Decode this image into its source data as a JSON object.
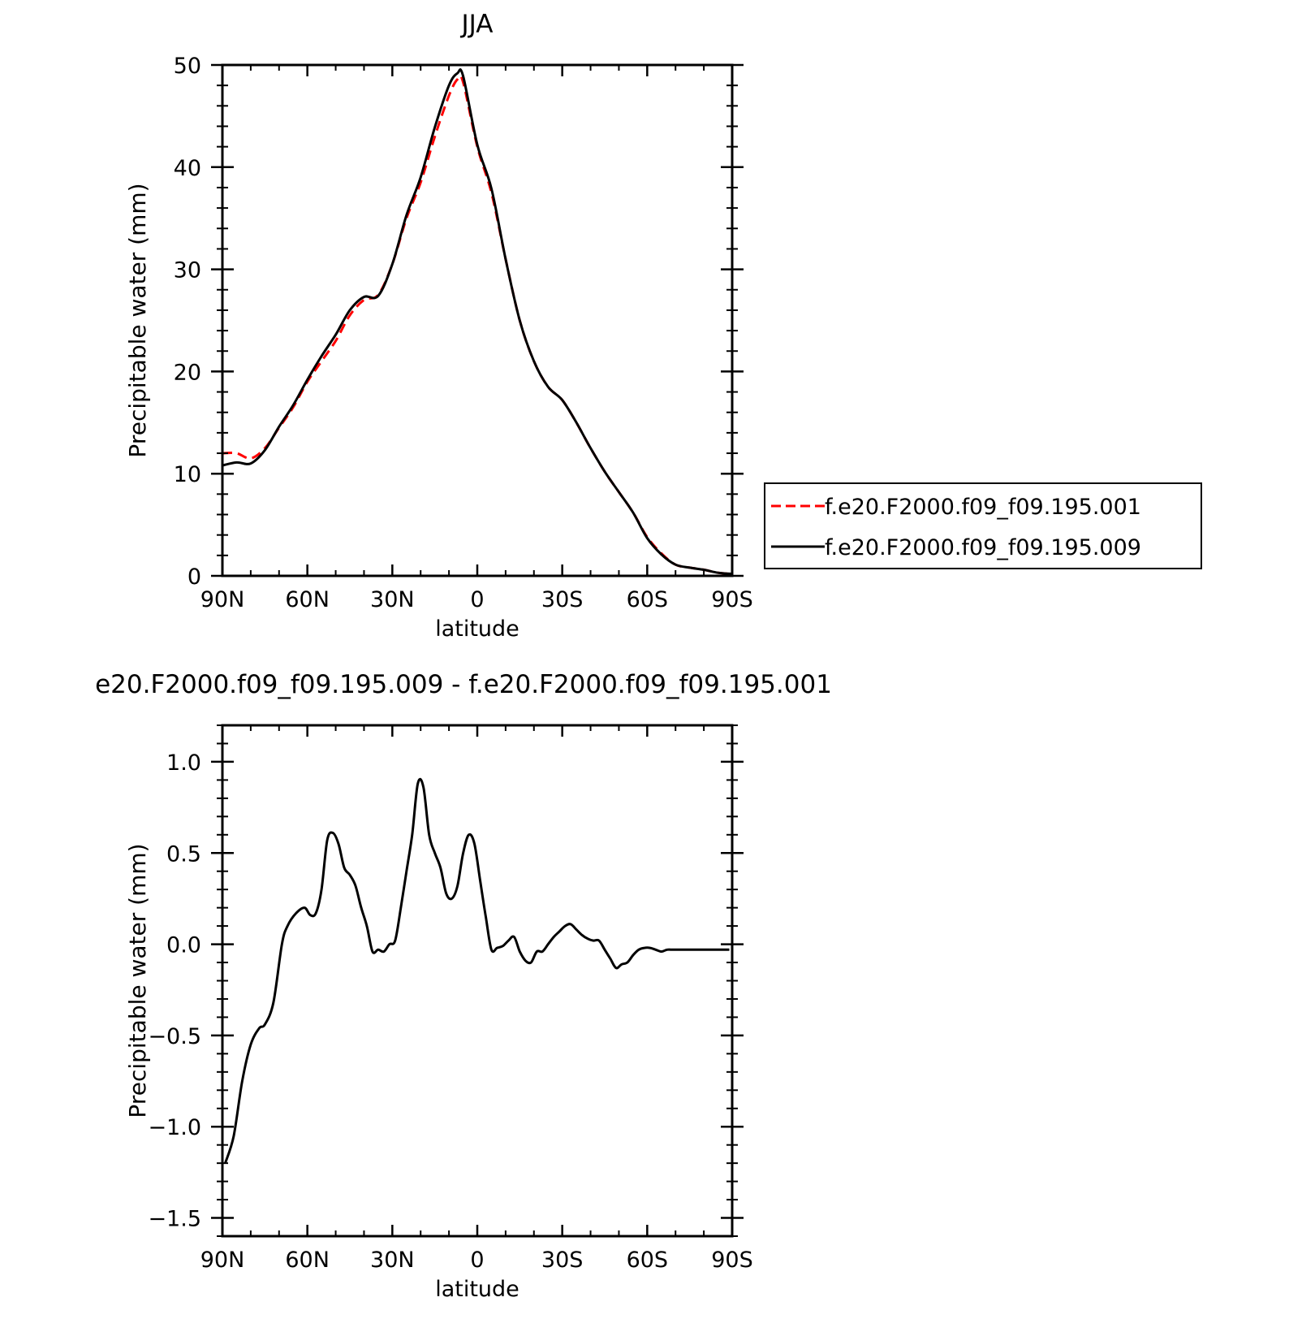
{
  "chart_data": [
    {
      "type": "line",
      "title": "JJA",
      "xlabel": "latitude",
      "ylabel": "Precipitable water (mm)",
      "xlim": [
        90,
        -90
      ],
      "ylim": [
        0,
        50
      ],
      "x_ticks": [
        90,
        60,
        30,
        0,
        -30,
        -60,
        -90
      ],
      "x_tick_labels": [
        "90N",
        "60N",
        "30N",
        "0",
        "30S",
        "60S",
        "90S"
      ],
      "y_ticks": [
        0,
        10,
        20,
        30,
        40,
        50
      ],
      "y_tick_labels": [
        "0",
        "10",
        "20",
        "30",
        "40",
        "50"
      ],
      "grid": false,
      "legend_position": "right, outside plot",
      "series": [
        {
          "name": "f.e20.F2000.f09_f09.195.001",
          "color": "#ff0000",
          "style": "dashed",
          "x": [
            90,
            85,
            80,
            75,
            70,
            65,
            60,
            55,
            50,
            45,
            40,
            35,
            30,
            25,
            20,
            15,
            10,
            7,
            5,
            0,
            -5,
            -10,
            -15,
            -20,
            -25,
            -30,
            -35,
            -40,
            -45,
            -50,
            -55,
            -60,
            -65,
            -70,
            -75,
            -80,
            -85,
            -90
          ],
          "y": [
            12.0,
            12.0,
            11.5,
            12.5,
            14.5,
            16.5,
            19.0,
            21.0,
            23.0,
            25.5,
            27.0,
            27.5,
            30.5,
            35.0,
            38.5,
            43.0,
            47.0,
            48.6,
            48.3,
            42.0,
            37.5,
            31.0,
            25.0,
            21.0,
            18.5,
            17.2,
            15.0,
            12.5,
            10.2,
            8.2,
            6.2,
            3.8,
            2.2,
            1.1,
            0.8,
            0.6,
            0.3,
            0.2
          ]
        },
        {
          "name": "f.e20.F2000.f09_f09.195.009",
          "color": "#000000",
          "style": "solid",
          "x": [
            90,
            85,
            80,
            75,
            70,
            65,
            60,
            55,
            50,
            45,
            40,
            35,
            30,
            25,
            20,
            15,
            10,
            7,
            5,
            0,
            -5,
            -10,
            -15,
            -20,
            -25,
            -30,
            -35,
            -40,
            -45,
            -50,
            -55,
            -60,
            -65,
            -70,
            -75,
            -80,
            -85,
            -90
          ],
          "y": [
            10.8,
            11.1,
            11.0,
            12.3,
            14.6,
            16.7,
            19.2,
            21.5,
            23.6,
            26.0,
            27.3,
            27.4,
            30.5,
            35.3,
            39.0,
            43.9,
            48.0,
            49.2,
            48.9,
            42.2,
            37.9,
            31.0,
            25.0,
            21.0,
            18.5,
            17.2,
            15.0,
            12.5,
            10.2,
            8.2,
            6.2,
            3.7,
            2.1,
            1.1,
            0.8,
            0.6,
            0.3,
            0.2
          ]
        }
      ]
    },
    {
      "type": "line",
      "title": "e20.F2000.f09_f09.195.009 - f.e20.F2000.f09_f09.195.001",
      "xlabel": "latitude",
      "ylabel": "Precipitable water (mm)",
      "xlim": [
        90,
        -90
      ],
      "ylim": [
        -1.6,
        1.2
      ],
      "x_ticks": [
        90,
        60,
        30,
        0,
        -30,
        -60,
        -90
      ],
      "x_tick_labels": [
        "90N",
        "60N",
        "30N",
        "0",
        "30S",
        "60S",
        "90S"
      ],
      "y_ticks": [
        -1.5,
        -1.0,
        -0.5,
        0.0,
        0.5,
        1.0
      ],
      "y_tick_labels": [
        "−1.5",
        "−1.0",
        "−0.5",
        "0.0",
        "0.5",
        "1.0"
      ],
      "grid": false,
      "series": [
        {
          "color": "#000000",
          "style": "solid",
          "x": [
            89,
            86,
            83,
            80,
            77,
            75,
            72,
            69,
            67,
            64,
            61,
            59,
            57,
            55,
            53,
            51,
            49,
            47,
            45,
            43,
            41,
            39,
            37,
            35,
            33,
            31,
            29,
            27,
            25,
            23,
            21,
            19,
            17,
            15,
            13,
            11,
            9,
            7,
            5,
            3,
            1,
            -1,
            -3,
            -5,
            -7,
            -9,
            -11,
            -13,
            -15,
            -17,
            -19,
            -21,
            -23,
            -25,
            -27,
            -29,
            -31,
            -33,
            -35,
            -37,
            -39,
            -41,
            -43,
            -45,
            -47,
            -49,
            -51,
            -53,
            -55,
            -57,
            -59,
            -61,
            -63,
            -65,
            -67,
            -69,
            -71,
            -73,
            -75,
            -77,
            -79,
            -81,
            -83,
            -85,
            -87,
            -89
          ],
          "y": [
            -1.2,
            -1.05,
            -0.75,
            -0.55,
            -0.46,
            -0.44,
            -0.32,
            0.0,
            0.1,
            0.17,
            0.2,
            0.16,
            0.17,
            0.3,
            0.57,
            0.61,
            0.55,
            0.42,
            0.38,
            0.32,
            0.2,
            0.1,
            -0.04,
            -0.03,
            -0.04,
            0.0,
            0.02,
            0.2,
            0.4,
            0.6,
            0.88,
            0.86,
            0.6,
            0.5,
            0.42,
            0.28,
            0.25,
            0.32,
            0.5,
            0.6,
            0.55,
            0.35,
            0.15,
            -0.03,
            -0.02,
            -0.01,
            0.02,
            0.04,
            -0.04,
            -0.09,
            -0.1,
            -0.04,
            -0.04,
            0.0,
            0.04,
            0.07,
            0.1,
            0.11,
            0.08,
            0.05,
            0.03,
            0.02,
            0.02,
            -0.03,
            -0.08,
            -0.13,
            -0.11,
            -0.1,
            -0.06,
            -0.03,
            -0.02,
            -0.02,
            -0.03,
            -0.04,
            -0.03,
            -0.03,
            -0.03,
            -0.03,
            -0.03,
            -0.03,
            -0.03,
            -0.03,
            -0.03,
            -0.03,
            -0.03,
            -0.03
          ]
        }
      ]
    }
  ]
}
